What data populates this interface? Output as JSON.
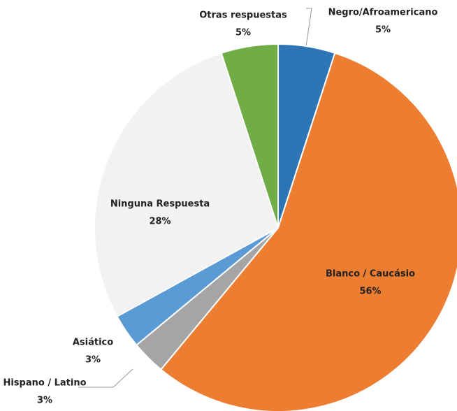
{
  "chart_data": {
    "type": "pie",
    "categories": [
      "Negro/Afroamericano",
      "Blanco / Caucásio",
      "Hispano / Latino",
      "Asiático",
      "Ninguna Respuesta",
      "Otras respuestas"
    ],
    "values": [
      5,
      56,
      3,
      3,
      28,
      5
    ],
    "value_labels": [
      "5%",
      "56%",
      "3%",
      "3%",
      "28%",
      "5%"
    ],
    "colors": [
      "#2e75b6",
      "#ed7d31",
      "#a5a5a5",
      "#5b9bd5",
      "#f2f2f2",
      "#70ad47"
    ]
  }
}
